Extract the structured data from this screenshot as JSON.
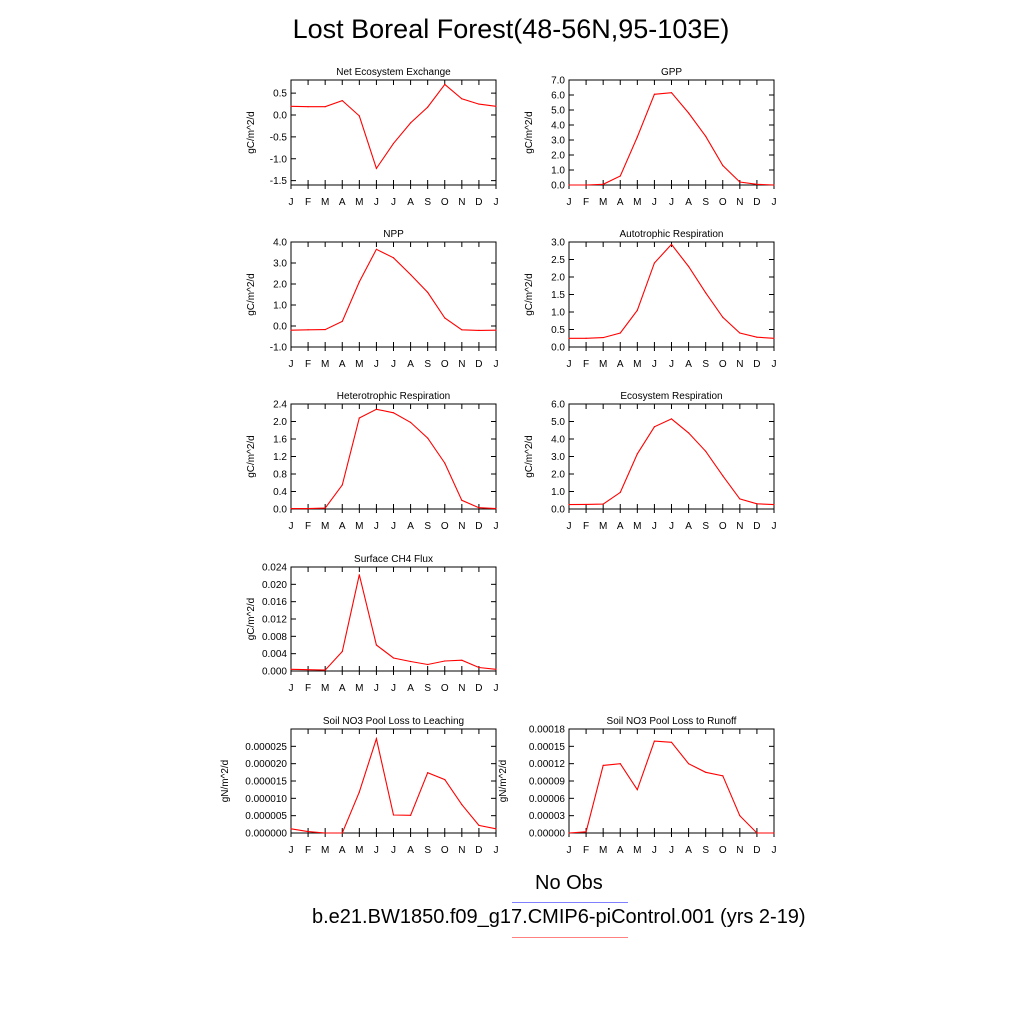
{
  "title": "Lost Boreal Forest(48-56N,95-103E)",
  "legend": {
    "obs_label": "No Obs",
    "obs_color": "#8080ff",
    "case_label": "b.e21.BW1850.f09_g17.CMIP6-piControl.001 (yrs 2-19)",
    "case_color": "#ff8080"
  },
  "line_color": "#ff0000",
  "chart_data": [
    {
      "type": "line",
      "title": "Net Ecosystem Exchange",
      "ylabel": "gC/m^2/d",
      "categories": [
        "J",
        "F",
        "M",
        "A",
        "M",
        "J",
        "J",
        "A",
        "S",
        "O",
        "N",
        "D",
        "J"
      ],
      "ylim": [
        -1.6,
        0.8
      ],
      "yticks": [
        -1.5,
        -1.0,
        -0.5,
        0.0,
        0.5
      ],
      "yticklabels": [
        "-1.5",
        "-1.0",
        "-0.5",
        "0.0",
        "0.5"
      ],
      "values": [
        0.2,
        0.19,
        0.19,
        0.33,
        -0.02,
        -1.22,
        -0.65,
        -0.18,
        0.18,
        0.7,
        0.37,
        0.25,
        0.2
      ]
    },
    {
      "type": "line",
      "title": "GPP",
      "ylabel": "gC/m^2/d",
      "categories": [
        "J",
        "F",
        "M",
        "A",
        "M",
        "J",
        "J",
        "A",
        "S",
        "O",
        "N",
        "D",
        "J"
      ],
      "ylim": [
        0.0,
        7.0
      ],
      "yticks": [
        0.0,
        1.0,
        2.0,
        3.0,
        4.0,
        5.0,
        6.0,
        7.0
      ],
      "yticklabels": [
        "0.0",
        "1.0",
        "2.0",
        "3.0",
        "4.0",
        "5.0",
        "6.0",
        "7.0"
      ],
      "values": [
        0.0,
        0.0,
        0.05,
        0.6,
        3.2,
        6.05,
        6.15,
        4.8,
        3.25,
        1.3,
        0.2,
        0.05,
        0.0
      ]
    },
    {
      "type": "line",
      "title": "NPP",
      "ylabel": "gC/m^2/d",
      "categories": [
        "J",
        "F",
        "M",
        "A",
        "M",
        "J",
        "J",
        "A",
        "S",
        "O",
        "N",
        "D",
        "J"
      ],
      "ylim": [
        -1.0,
        4.0
      ],
      "yticks": [
        -1.0,
        0.0,
        1.0,
        2.0,
        3.0,
        4.0
      ],
      "yticklabels": [
        "-1.0",
        "0.0",
        "1.0",
        "2.0",
        "3.0",
        "4.0"
      ],
      "values": [
        -0.2,
        -0.18,
        -0.17,
        0.22,
        2.1,
        3.65,
        3.25,
        2.45,
        1.6,
        0.38,
        -0.18,
        -0.21,
        -0.2
      ]
    },
    {
      "type": "line",
      "title": "Autotrophic Respiration",
      "ylabel": "gC/m^2/d",
      "categories": [
        "J",
        "F",
        "M",
        "A",
        "M",
        "J",
        "J",
        "A",
        "S",
        "O",
        "N",
        "D",
        "J"
      ],
      "ylim": [
        0.0,
        3.0
      ],
      "yticks": [
        0.0,
        0.5,
        1.0,
        1.5,
        2.0,
        2.5,
        3.0
      ],
      "yticklabels": [
        "0.0",
        "0.5",
        "1.0",
        "1.5",
        "2.0",
        "2.5",
        "3.0"
      ],
      "values": [
        0.25,
        0.25,
        0.27,
        0.4,
        1.05,
        2.4,
        2.93,
        2.3,
        1.55,
        0.85,
        0.4,
        0.28,
        0.25
      ]
    },
    {
      "type": "line",
      "title": "Heterotrophic Respiration",
      "ylabel": "gC/m^2/d",
      "categories": [
        "J",
        "F",
        "M",
        "A",
        "M",
        "J",
        "J",
        "A",
        "S",
        "O",
        "N",
        "D",
        "J"
      ],
      "ylim": [
        0.0,
        2.4
      ],
      "yticks": [
        0.0,
        0.4,
        0.8,
        1.2,
        1.6,
        2.0,
        2.4
      ],
      "yticklabels": [
        "0.0",
        "0.4",
        "0.8",
        "1.2",
        "1.6",
        "2.0",
        "2.4"
      ],
      "values": [
        0.01,
        0.01,
        0.02,
        0.55,
        2.08,
        2.28,
        2.2,
        1.98,
        1.62,
        1.05,
        0.2,
        0.03,
        0.01
      ]
    },
    {
      "type": "line",
      "title": "Ecosystem Respiration",
      "ylabel": "gC/m^2/d",
      "categories": [
        "J",
        "F",
        "M",
        "A",
        "M",
        "J",
        "J",
        "A",
        "S",
        "O",
        "N",
        "D",
        "J"
      ],
      "ylim": [
        0.0,
        6.0
      ],
      "yticks": [
        0.0,
        1.0,
        2.0,
        3.0,
        4.0,
        5.0,
        6.0
      ],
      "yticklabels": [
        "0.0",
        "1.0",
        "2.0",
        "3.0",
        "4.0",
        "5.0",
        "6.0"
      ],
      "values": [
        0.25,
        0.26,
        0.28,
        0.95,
        3.15,
        4.7,
        5.15,
        4.35,
        3.3,
        1.9,
        0.58,
        0.3,
        0.25
      ]
    },
    {
      "type": "line",
      "title": "Surface CH4 Flux",
      "ylabel": "gC/m^2/d",
      "categories": [
        "J",
        "F",
        "M",
        "A",
        "M",
        "J",
        "J",
        "A",
        "S",
        "O",
        "N",
        "D",
        "J"
      ],
      "ylim": [
        0.0,
        0.024
      ],
      "yticks": [
        0.0,
        0.004,
        0.008,
        0.012,
        0.016,
        0.02,
        0.024
      ],
      "yticklabels": [
        "0.000",
        "0.004",
        "0.008",
        "0.012",
        "0.016",
        "0.020",
        "0.024"
      ],
      "values": [
        0.0004,
        0.0003,
        0.0002,
        0.0045,
        0.0222,
        0.006,
        0.003,
        0.0022,
        0.0015,
        0.0023,
        0.0025,
        0.0008,
        0.0004
      ]
    },
    {
      "type": "line",
      "title": "Soil NO3 Pool Loss to Leaching",
      "ylabel": "gN/m^2/d",
      "categories": [
        "J",
        "F",
        "M",
        "A",
        "M",
        "J",
        "J",
        "A",
        "S",
        "O",
        "N",
        "D",
        "J"
      ],
      "ylim": [
        0.0,
        3e-05
      ],
      "yticks": [
        0.0,
        5e-06,
        1e-05,
        1.5e-05,
        2e-05,
        2.5e-05
      ],
      "yticklabels": [
        "0.000000",
        "0.000005",
        "0.000010",
        "0.000015",
        "0.000020",
        "0.000025"
      ],
      "values": [
        1.2e-06,
        4e-07,
        0.0,
        0.0,
        1.18e-05,
        2.72e-05,
        5.2e-06,
        5.1e-06,
        1.74e-05,
        1.54e-05,
        8.2e-06,
        2.2e-06,
        1.2e-06
      ]
    },
    {
      "type": "line",
      "title": "Soil NO3 Pool Loss to Runoff",
      "ylabel": "gN/m^2/d",
      "categories": [
        "J",
        "F",
        "M",
        "A",
        "M",
        "J",
        "J",
        "A",
        "S",
        "O",
        "N",
        "D",
        "J"
      ],
      "ylim": [
        0.0,
        0.00018
      ],
      "yticks": [
        0.0,
        3e-05,
        6e-05,
        9e-05,
        0.00012,
        0.00015,
        0.00018
      ],
      "yticklabels": [
        "0.00000",
        "0.00003",
        "0.00006",
        "0.00009",
        "0.00012",
        "0.00015",
        "0.00018"
      ],
      "values": [
        0.0,
        2e-06,
        0.000117,
        0.00012,
        7.5e-05,
        0.000159,
        0.000157,
        0.00012,
        0.000105,
        9.9e-05,
        3e-05,
        0.0,
        0.0
      ]
    }
  ]
}
